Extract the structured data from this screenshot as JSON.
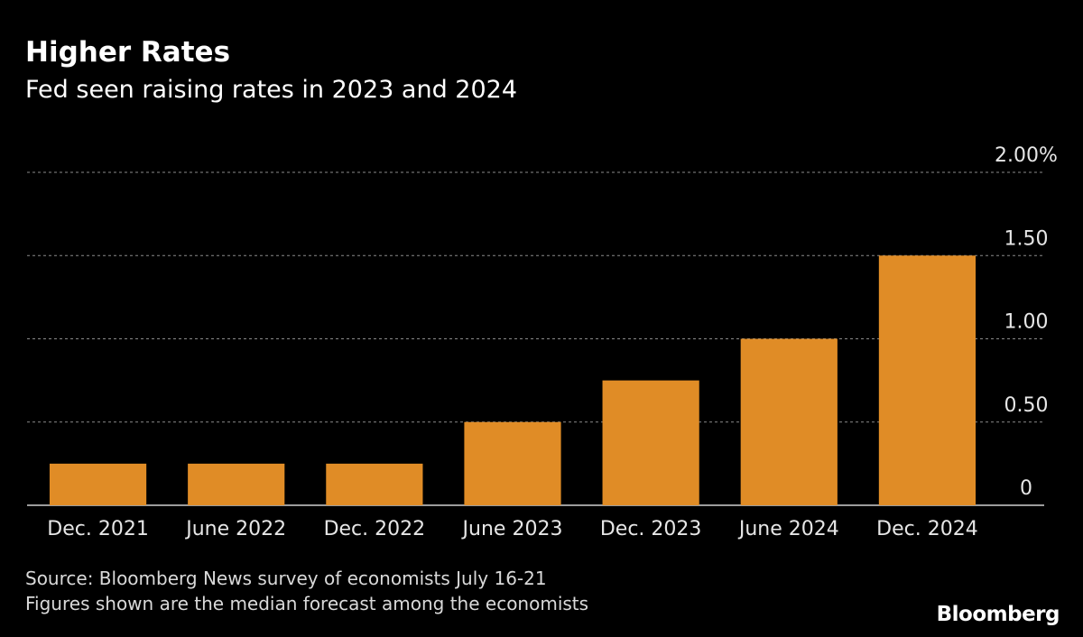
{
  "header": {
    "title": "Higher Rates",
    "subtitle": "Fed seen raising rates in 2023 and 2024"
  },
  "footer": {
    "source": "Source: Bloomberg News survey of economists July 16-21",
    "note": "Figures shown are the median forecast among the economists",
    "brand": "Bloomberg"
  },
  "colors": {
    "background": "#000000",
    "bar": "#e08c26",
    "grid": "#8a8a8a",
    "text": "#ffffff"
  },
  "chart_data": {
    "type": "bar",
    "title": "Higher Rates",
    "subtitle": "Fed seen raising rates in 2023 and 2024",
    "categories": [
      "Dec. 2021",
      "June 2022",
      "Dec. 2022",
      "June 2023",
      "Dec. 2023",
      "June 2024",
      "Dec. 2024"
    ],
    "values": [
      0.25,
      0.25,
      0.25,
      0.5,
      0.75,
      1.0,
      1.5
    ],
    "ylim": [
      0,
      2.0
    ],
    "yticks": [
      0,
      0.5,
      1.0,
      1.5,
      2.0
    ],
    "ytick_labels": [
      "0",
      "0.50",
      "1.00",
      "1.50",
      "2.00%"
    ],
    "grid": true,
    "yaxis_position": "right"
  }
}
